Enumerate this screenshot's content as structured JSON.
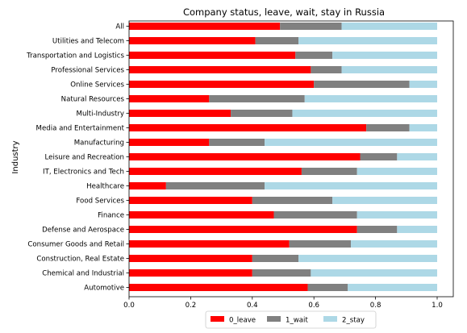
{
  "chart_data": {
    "type": "bar",
    "orientation": "horizontal",
    "stacked": true,
    "title": "Company status, leave, wait, stay in Russia",
    "xlabel": "",
    "ylabel": "Industry",
    "xlim": [
      0,
      1.0
    ],
    "xticks": [
      0.0,
      0.2,
      0.4,
      0.6,
      0.8,
      1.0
    ],
    "xtick_labels": [
      "0.0",
      "0.2",
      "0.4",
      "0.6",
      "0.8",
      "1.0"
    ],
    "grid": false,
    "legend_position": "bottom-center",
    "categories": [
      "All",
      "Utilities and Telecom",
      "Transportation and Logistics",
      "Professional Services",
      "Online Services",
      "Natural Resources",
      "Multi-Industry",
      "Media and Entertainment",
      "Manufacturing",
      "Leisure and Recreation",
      "IT, Electronics and Tech",
      "Healthcare",
      "Food Services",
      "Finance",
      "Defense and Aerospace",
      "Consumer Goods and Retail",
      "Construction, Real Estate",
      "Chemical and Industrial",
      "Automotive"
    ],
    "series": [
      {
        "name": "0_leave",
        "color": "#ff0000",
        "values": [
          0.49,
          0.41,
          0.54,
          0.59,
          0.6,
          0.26,
          0.33,
          0.77,
          0.26,
          0.75,
          0.56,
          0.12,
          0.4,
          0.47,
          0.74,
          0.52,
          0.4,
          0.4,
          0.58
        ]
      },
      {
        "name": "1_wait",
        "color": "#808080",
        "values": [
          0.2,
          0.14,
          0.12,
          0.1,
          0.31,
          0.31,
          0.2,
          0.14,
          0.18,
          0.12,
          0.18,
          0.32,
          0.26,
          0.27,
          0.13,
          0.2,
          0.15,
          0.19,
          0.13
        ]
      },
      {
        "name": "2_stay",
        "color": "#add8e6",
        "values": [
          0.31,
          0.45,
          0.34,
          0.31,
          0.09,
          0.43,
          0.47,
          0.09,
          0.56,
          0.13,
          0.26,
          0.56,
          0.34,
          0.26,
          0.13,
          0.28,
          0.45,
          0.41,
          0.29
        ]
      }
    ]
  }
}
